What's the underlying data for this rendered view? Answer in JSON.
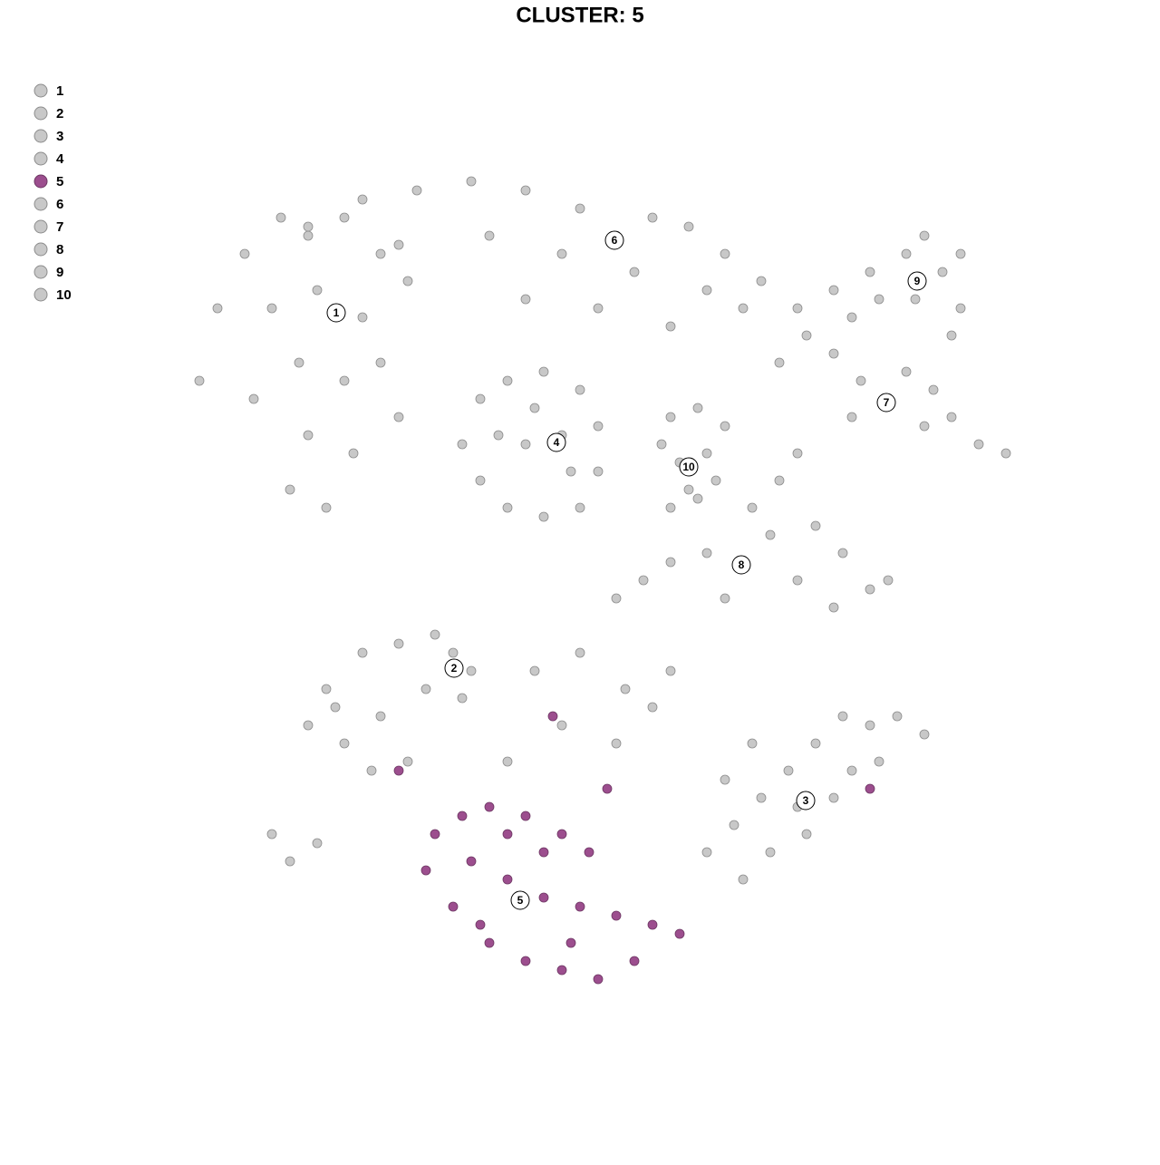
{
  "chart_data": {
    "type": "scatter",
    "title": "CLUSTER: 5",
    "legend": "top-left",
    "xlim": [
      -44,
      50
    ],
    "ylim": [
      -46,
      46
    ],
    "series": [
      {
        "name": "1",
        "color": "#c8c8c8",
        "center": [
          -26.9,
          29.5
        ],
        "x": [
          -42,
          -40,
          -37,
          -33,
          -30,
          -26,
          -22,
          -19,
          -34,
          -29,
          -24,
          -31,
          -26,
          -22,
          -30,
          -25,
          -28,
          -32,
          -20,
          -36
        ],
        "y": [
          22,
          30,
          36,
          40,
          38,
          40,
          36,
          33,
          30,
          32,
          29,
          24,
          22,
          24,
          16,
          14,
          8,
          10,
          18,
          20
        ]
      },
      {
        "name": "2",
        "color": "#c8c8c8",
        "center": [
          -13.9,
          -9.7
        ],
        "x": [
          -30,
          -27,
          -24,
          -20,
          -16,
          -14,
          -12,
          -13,
          -17,
          -22,
          -26,
          -23,
          -19,
          -28,
          -34,
          -29,
          -32
        ],
        "y": [
          -16,
          -14,
          -8,
          -7,
          -6,
          -8,
          -10,
          -13,
          -12,
          -15,
          -18,
          -21,
          -20,
          -12,
          -28,
          -29,
          -31
        ]
      },
      {
        "name": "3",
        "color": "#c8c8c8",
        "center": [
          24.9,
          -24.3
        ],
        "x": [
          14,
          17,
          20,
          23,
          26,
          29,
          32,
          35,
          38,
          33,
          28,
          25,
          21,
          18,
          24,
          30,
          16,
          19
        ],
        "y": [
          -30,
          -27,
          -24,
          -21,
          -18,
          -15,
          -16,
          -15,
          -17,
          -20,
          -24,
          -28,
          -30,
          -33,
          -25,
          -21,
          -22,
          -18
        ]
      },
      {
        "name": "4",
        "color": "#c8c8c8",
        "center": [
          -2.6,
          15.2
        ],
        "x": [
          -13,
          -11,
          -8,
          -4,
          0,
          2,
          2,
          0,
          -4,
          -8,
          -11,
          -6,
          -2,
          -5,
          -1,
          -9
        ],
        "y": [
          15,
          20,
          22,
          23,
          21,
          17,
          12,
          8,
          7,
          8,
          11,
          15,
          16,
          19,
          12,
          16
        ]
      },
      {
        "name": "5",
        "color": "#9c4e8e",
        "center": [
          -6.6,
          -35.3
        ],
        "x": [
          -16,
          -13,
          -10,
          -6,
          -2,
          1,
          -12,
          -8,
          -4,
          0,
          4,
          8,
          11,
          -14,
          -10,
          -6,
          -2,
          2,
          6,
          -11,
          -4,
          -8,
          -17,
          -1,
          -3,
          -20,
          3,
          32
        ],
        "y": [
          -28,
          -26,
          -25,
          -26,
          -28,
          -30,
          -31,
          -33,
          -35,
          -36,
          -37,
          -38,
          -39,
          -36,
          -40,
          -42,
          -43,
          -44,
          -42,
          -38,
          -30,
          -28,
          -32,
          -40,
          -15,
          -21,
          -23,
          -23
        ]
      },
      {
        "name": "6",
        "color": "#c8c8c8",
        "center": [
          3.8,
          37.5
        ],
        "x": [
          -30,
          -24,
          -18,
          -12,
          -6,
          0,
          4,
          8,
          12,
          16,
          20,
          -20,
          -10,
          -2,
          6,
          14,
          2,
          -6,
          10,
          18
        ],
        "y": [
          39,
          42,
          43,
          44,
          43,
          41,
          38,
          40,
          39,
          36,
          33,
          37,
          38,
          36,
          34,
          32,
          30,
          31,
          28,
          30
        ]
      },
      {
        "name": "7",
        "color": "#c8c8c8",
        "center": [
          33.8,
          19.6
        ],
        "x": [
          22,
          25,
          28,
          31,
          34,
          36,
          38,
          41,
          44,
          47,
          30,
          39
        ],
        "y": [
          24,
          27,
          25,
          22,
          20,
          23,
          17,
          18,
          15,
          14,
          18,
          21
        ]
      },
      {
        "name": "8",
        "color": "#c8c8c8",
        "center": [
          17.8,
          1.7
        ],
        "x": [
          4,
          7,
          10,
          14,
          18,
          21,
          19,
          22,
          24,
          26,
          29,
          32,
          34,
          28,
          16,
          24,
          -5,
          0,
          5,
          10,
          -2,
          4,
          8,
          -8
        ],
        "y": [
          -2,
          0,
          2,
          3,
          2,
          5,
          8,
          11,
          14,
          6,
          3,
          -1,
          0,
          -3,
          -2,
          0,
          -10,
          -8,
          -12,
          -10,
          -16,
          -18,
          -14,
          -20
        ]
      },
      {
        "name": "9",
        "color": "#c8c8c8",
        "center": [
          37.2,
          33
        ],
        "x": [
          24,
          28,
          32,
          36,
          38,
          40,
          42,
          41,
          37,
          33,
          30,
          42
        ],
        "y": [
          30,
          32,
          34,
          36,
          38,
          34,
          30,
          27,
          31,
          31,
          29,
          36
        ]
      },
      {
        "name": "10",
        "color": "#c8c8c8",
        "center": [
          12,
          12.5
        ],
        "x": [
          10,
          13,
          16,
          14,
          11,
          12,
          10,
          13,
          15,
          9
        ],
        "y": [
          18,
          19,
          17,
          14,
          13,
          10,
          8,
          9,
          11,
          15
        ]
      }
    ]
  }
}
